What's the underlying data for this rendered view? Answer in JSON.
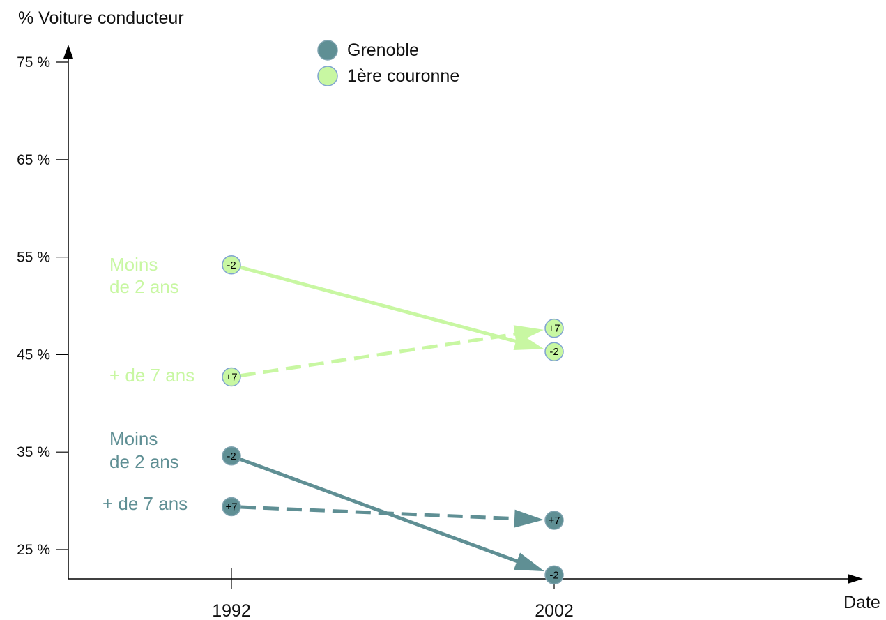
{
  "chart_data": {
    "type": "line",
    "ylabel": "% Voiture conducteur",
    "xlabel": "Date",
    "x": [
      "1992",
      "2002"
    ],
    "ylim": [
      25,
      75
    ],
    "yticks": [
      25,
      35,
      45,
      55,
      65,
      75
    ],
    "ytick_labels": [
      "25 %",
      "35 %",
      "45 %",
      "55 %",
      "65 %",
      "75 %"
    ],
    "grid": false,
    "legend_position": "top",
    "legend": [
      {
        "label": "Grenoble",
        "color": "#5f8f94"
      },
      {
        "label": "1ère couronne",
        "color": "#c8f7a2"
      }
    ],
    "series": [
      {
        "group": "1ère couronne",
        "point_label": "-2",
        "values": [
          54.2,
          45.3
        ],
        "style": "solid",
        "color": "#c8f7a2"
      },
      {
        "group": "1ère couronne",
        "point_label": "+7",
        "values": [
          42.7,
          47.7
        ],
        "style": "dashed",
        "color": "#c8f7a2"
      },
      {
        "group": "Grenoble",
        "point_label": "-2",
        "values": [
          34.6,
          22.4
        ],
        "style": "solid",
        "color": "#5f8f94"
      },
      {
        "group": "Grenoble",
        "point_label": "+7",
        "values": [
          29.4,
          28.0
        ],
        "style": "dashed",
        "color": "#5f8f94"
      }
    ],
    "annotations": [
      {
        "lines": [
          "Moins",
          "de 2 ans"
        ],
        "color": "#c8f7a2",
        "near": "1ère couronne -2"
      },
      {
        "lines": [
          "+ de 7 ans"
        ],
        "color": "#c8f7a2",
        "near": "1ère couronne +7"
      },
      {
        "lines": [
          "Moins",
          "de 2 ans"
        ],
        "color": "#5f8f94",
        "near": "Grenoble -2"
      },
      {
        "lines": [
          "+ de 7 ans"
        ],
        "color": "#5f8f94",
        "near": "Grenoble +7"
      }
    ]
  }
}
